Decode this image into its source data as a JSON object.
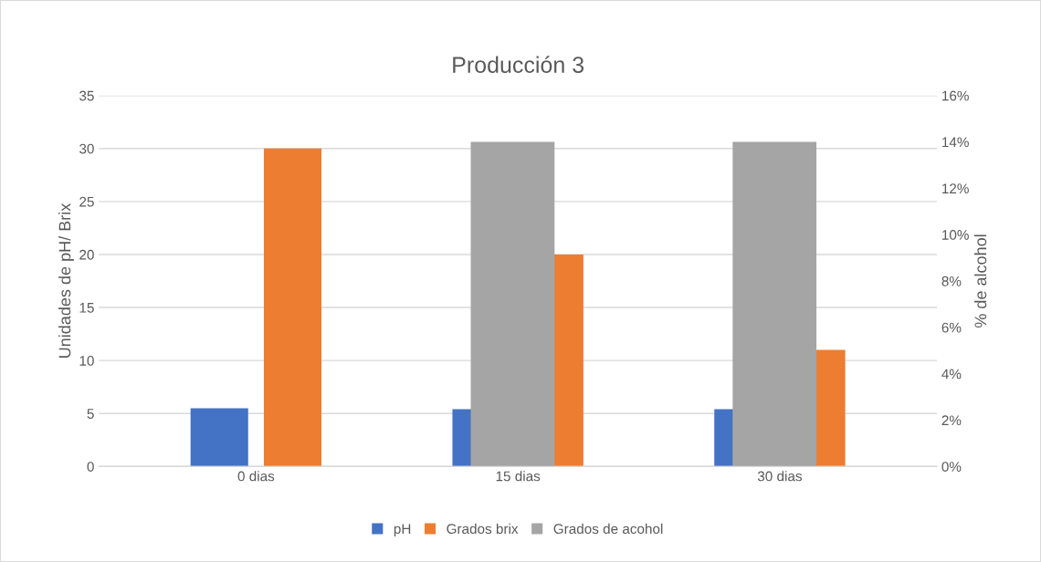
{
  "chart_data": {
    "type": "bar",
    "title": "Producción 3",
    "ylabel": "Unidades de pH/ Brix",
    "y2label": "% de alcohol",
    "categories": [
      "0 dias",
      "15 dias",
      "30 dias"
    ],
    "series": [
      {
        "name": "pH",
        "color": "#4472c4",
        "values": [
          5.5,
          5.4,
          5.4
        ]
      },
      {
        "name": "Grados brix",
        "color": "#ed7d31",
        "values": [
          30,
          20,
          11
        ]
      },
      {
        "name": "Grados de acohol",
        "color": "#a5a5a5",
        "values": [
          0,
          14,
          14
        ],
        "axis": "y2"
      }
    ],
    "ylim": [
      0,
      35
    ],
    "yticks": [
      0,
      5,
      10,
      15,
      20,
      25,
      30,
      35
    ],
    "y2lim": [
      0,
      16
    ],
    "y2ticks": [
      {
        "value": 0,
        "label": "0%"
      },
      {
        "value": 2,
        "label": "2%"
      },
      {
        "value": 4,
        "label": "4%"
      },
      {
        "value": 6,
        "label": "6%"
      },
      {
        "value": 8,
        "label": "8%"
      },
      {
        "value": 10,
        "label": "10%"
      },
      {
        "value": 12,
        "label": "12%"
      },
      {
        "value": 14,
        "label": "14%"
      },
      {
        "value": 16,
        "label": "16%"
      }
    ],
    "grid": "y",
    "legend": "bottom"
  }
}
